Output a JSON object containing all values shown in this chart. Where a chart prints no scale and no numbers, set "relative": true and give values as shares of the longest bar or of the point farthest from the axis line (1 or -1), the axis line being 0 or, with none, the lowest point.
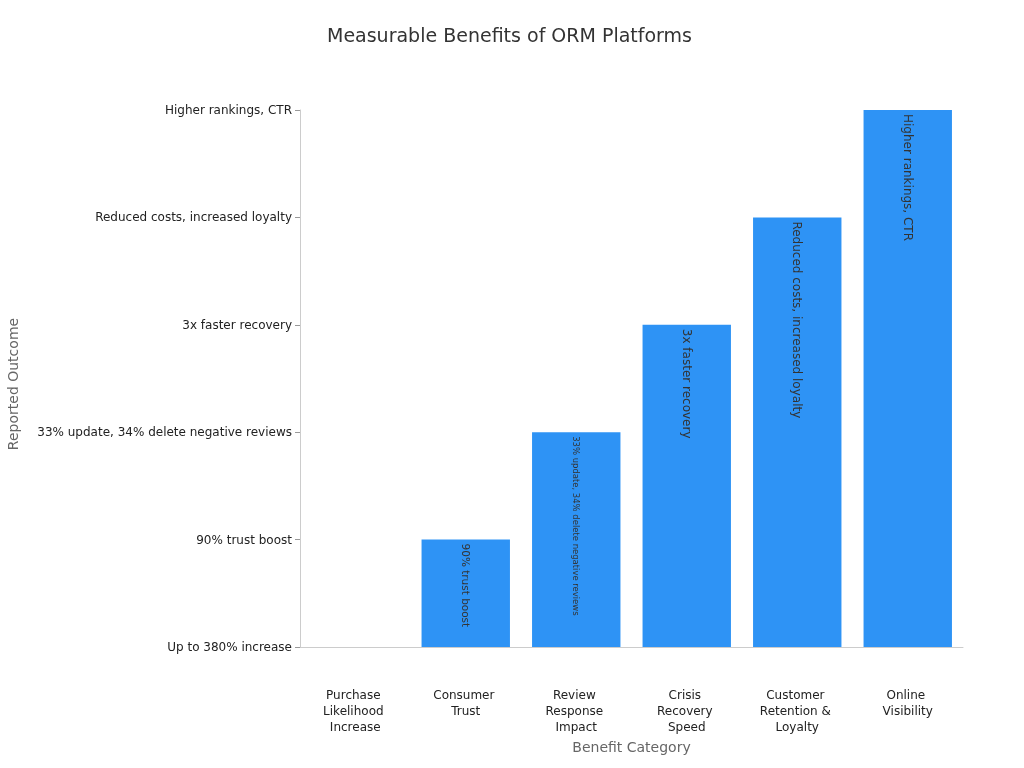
{
  "chart_data": {
    "type": "bar",
    "title": "Measurable Benefits of ORM Platforms",
    "xlabel": "Benefit Category",
    "categories": [
      "Purchase Likelihood Increase",
      "Consumer Trust",
      "Review Response Impact",
      "Crisis Recovery Speed",
      "Customer Retention & Loyalty",
      "Online Visibility"
    ],
    "values": [
      0,
      0.2,
      0.4,
      0.6,
      0.8,
      1
    ],
    "relative": true,
    "annotations": [
      "Up to 380% increase",
      "90% trust boost",
      "33% update, 34% delete negative reviews",
      "3x faster recovery",
      "Reduced costs, increased loyalty",
      "Higher rankings, CTR",
      "Reported Outcome",
      {
        "text": "90% trust boost",
        "x": "Consumer Trust",
        "y": 0.2
      },
      {
        "text": "33% update, 34% delete negative reviews",
        "x": "Review Response Impact",
        "y": 0.4
      },
      {
        "text": "3x faster recovery",
        "x": "Crisis Recovery Speed",
        "y": 0.6
      },
      {
        "text": "Reduced costs, increased loyalty",
        "x": "Customer Retention & Loyalty",
        "y": 0.8
      },
      {
        "text": "Higher rankings, CTR",
        "x": "Online Visibility",
        "y": 1
      }
    ],
    "color": "#2e93f5",
    "grid": false
  }
}
